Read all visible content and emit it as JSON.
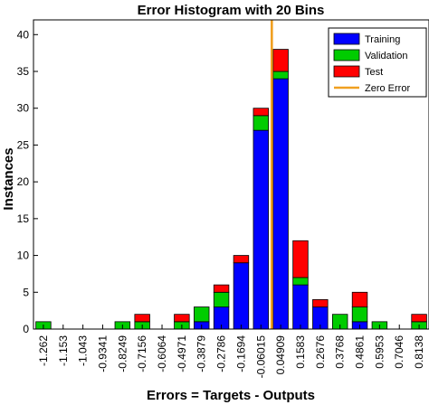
{
  "chart_data": {
    "type": "bar",
    "stacked": true,
    "title": "Error Histogram with 20 Bins",
    "xlabel": "Errors = Targets - Outputs",
    "ylabel": "Instances",
    "ylim": [
      0,
      42
    ],
    "yticks": [
      0,
      5,
      10,
      15,
      20,
      25,
      30,
      35,
      40
    ],
    "grid": false,
    "legend_position": "top-right",
    "categories": [
      "-1.262",
      "-1.153",
      "-1.043",
      "-0.9341",
      "-0.8249",
      "-0.7156",
      "-0.6064",
      "-0.4971",
      "-0.3879",
      "-0.2786",
      "-0.1694",
      "-0.06015",
      "0.04909",
      "0.1583",
      "0.2676",
      "0.3768",
      "0.4861",
      "0.5953",
      "0.7046",
      "0.8138"
    ],
    "series": [
      {
        "name": "Training",
        "color": "#0000ff",
        "values": [
          0,
          0,
          0,
          0,
          0,
          0,
          0,
          0,
          1,
          3,
          9,
          27,
          34,
          6,
          3,
          0,
          1,
          0,
          0,
          0
        ]
      },
      {
        "name": "Validation",
        "color": "#00cc00",
        "values": [
          1,
          0,
          0,
          0,
          1,
          1,
          0,
          1,
          2,
          2,
          0,
          2,
          1,
          1,
          0,
          2,
          2,
          1,
          0,
          1
        ]
      },
      {
        "name": "Test",
        "color": "#ff0000",
        "values": [
          0,
          0,
          0,
          0,
          0,
          1,
          0,
          1,
          0,
          1,
          1,
          1,
          3,
          5,
          1,
          0,
          2,
          0,
          0,
          1
        ]
      }
    ],
    "reference_line": {
      "name": "Zero Error",
      "color": "#f0a020",
      "x": 0
    }
  }
}
